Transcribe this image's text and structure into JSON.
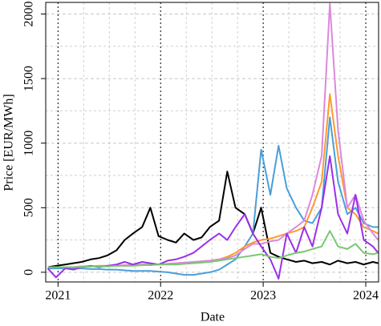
{
  "chart_data": {
    "type": "line",
    "xlabel": "Date",
    "ylabel": "Price [EUR/MWh]",
    "x": [
      2020.9,
      2020.98,
      2021.07,
      2021.15,
      2021.23,
      2021.32,
      2021.4,
      2021.48,
      2021.57,
      2021.65,
      2021.73,
      2021.82,
      2021.9,
      2021.98,
      2022.07,
      2022.15,
      2022.23,
      2022.32,
      2022.4,
      2022.48,
      2022.57,
      2022.65,
      2022.73,
      2022.82,
      2022.9,
      2022.98,
      2023.07,
      2023.15,
      2023.23,
      2023.32,
      2023.4,
      2023.48,
      2023.57,
      2023.65,
      2023.73,
      2023.82,
      2023.9,
      2023.98,
      2024.07,
      2024.12
    ],
    "series": [
      {
        "color": "#000000",
        "values": [
          40,
          50,
          60,
          70,
          80,
          100,
          110,
          130,
          170,
          250,
          300,
          350,
          500,
          280,
          250,
          230,
          300,
          250,
          270,
          350,
          400,
          780,
          500,
          450,
          300,
          500,
          150,
          120,
          100,
          80,
          90,
          70,
          80,
          60,
          90,
          70,
          80,
          60,
          80,
          70
        ]
      },
      {
        "color": "#4a9fd8",
        "values": [
          30,
          30,
          30,
          30,
          30,
          25,
          25,
          20,
          20,
          15,
          10,
          10,
          10,
          5,
          0,
          -10,
          -20,
          -20,
          -10,
          0,
          20,
          60,
          100,
          200,
          300,
          950,
          600,
          980,
          650,
          500,
          400,
          380,
          500,
          1200,
          700,
          450,
          500,
          380,
          350,
          350
        ]
      },
      {
        "color": "#ff9a2e",
        "values": [
          40,
          40,
          40,
          40,
          45,
          45,
          50,
          50,
          50,
          55,
          55,
          60,
          60,
          60,
          65,
          70,
          75,
          80,
          85,
          90,
          100,
          120,
          150,
          200,
          230,
          250,
          260,
          280,
          300,
          320,
          350,
          500,
          700,
          1380,
          900,
          500,
          450,
          350,
          320,
          300
        ]
      },
      {
        "color": "#dd88dd",
        "values": [
          40,
          40,
          40,
          40,
          45,
          45,
          50,
          50,
          50,
          55,
          55,
          60,
          60,
          60,
          65,
          70,
          75,
          80,
          85,
          90,
          100,
          110,
          130,
          180,
          220,
          220,
          240,
          250,
          300,
          350,
          400,
          600,
          900,
          2080,
          1100,
          500,
          600,
          400,
          300,
          250
        ]
      },
      {
        "color": "#9b30e8",
        "values": [
          30,
          -40,
          30,
          20,
          40,
          50,
          40,
          50,
          60,
          80,
          60,
          80,
          70,
          60,
          90,
          100,
          120,
          150,
          200,
          250,
          300,
          250,
          350,
          450,
          300,
          200,
          100,
          -50,
          300,
          150,
          350,
          200,
          500,
          900,
          450,
          300,
          600,
          250,
          200,
          150
        ]
      },
      {
        "color": "#77c86e",
        "values": [
          40,
          40,
          40,
          40,
          40,
          45,
          45,
          45,
          50,
          50,
          50,
          55,
          55,
          60,
          60,
          60,
          65,
          70,
          75,
          80,
          90,
          100,
          110,
          120,
          130,
          140,
          120,
          110,
          130,
          150,
          160,
          180,
          200,
          320,
          200,
          180,
          220,
          150,
          140,
          150
        ]
      }
    ],
    "xlim": [
      2020.88,
      2024.125
    ],
    "xticks": [
      2021,
      2022,
      2023,
      2024
    ],
    "ylim": [
      -75,
      2090
    ],
    "yticks": [
      0,
      500,
      1000,
      1500,
      2000
    ],
    "grid": true
  }
}
